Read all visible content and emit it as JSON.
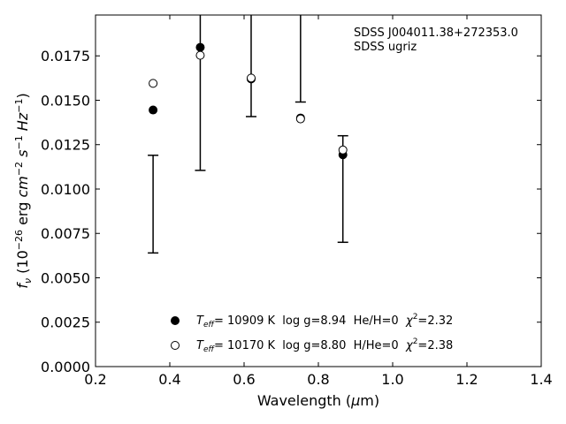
{
  "chart_data": {
    "type": "scatter",
    "xlabel": "Wavelength (μm)",
    "ylabel": "f_ν (10^-26 erg cm^-2 s^-1 Hz^-1)",
    "xlim": [
      0.2,
      1.4
    ],
    "ylim": [
      0.0,
      0.0198
    ],
    "x_ticks": [
      0.2,
      0.4,
      0.6,
      0.8,
      1.0,
      1.2,
      1.4
    ],
    "x_tick_labels": [
      "0.2",
      "0.4",
      "0.6",
      "0.8",
      "1.0",
      "1.2",
      "1.4"
    ],
    "y_ticks": [
      0.0,
      0.0025,
      0.005,
      0.0075,
      0.01,
      0.0125,
      0.015,
      0.0175
    ],
    "y_tick_labels": [
      "0.0000",
      "0.0025",
      "0.0050",
      "0.0075",
      "0.0100",
      "0.0125",
      "0.0150",
      "0.0175"
    ],
    "grid": false,
    "annotations": [
      "SDSS J004011.38+272353.0",
      "SDSS ugriz"
    ],
    "observed": {
      "x": [
        0.355,
        0.482,
        0.619,
        0.752,
        0.866
      ],
      "y": [
        0.00915,
        0.0198,
        0.0198,
        0.0198,
        0.01
      ],
      "err_low": [
        0.0064,
        0.01105,
        0.01408,
        0.0149,
        0.007
      ],
      "err_high": [
        0.0119,
        0.0198,
        0.0198,
        0.0198,
        0.013
      ],
      "cap_low": [
        true,
        true,
        true,
        true,
        true
      ],
      "cap_high": [
        true,
        false,
        false,
        false,
        true
      ]
    },
    "series": [
      {
        "name": "He/H=0",
        "marker": "filled",
        "label_teff": "10909 K",
        "label_rest": "  log g=8.94  He/H=0  ",
        "label_chi": "=2.32",
        "x": [
          0.355,
          0.482,
          0.619,
          0.752,
          0.866
        ],
        "y": [
          0.01445,
          0.01798,
          0.0162,
          0.014,
          0.01193
        ]
      },
      {
        "name": "H/He=0",
        "marker": "open",
        "label_teff": "10170 K",
        "label_rest": "  log g=8.80  H/He=0  ",
        "label_chi": "=2.38",
        "x": [
          0.355,
          0.482,
          0.619,
          0.752,
          0.866
        ],
        "y": [
          0.01595,
          0.01753,
          0.01625,
          0.01395,
          0.0122
        ]
      }
    ]
  }
}
